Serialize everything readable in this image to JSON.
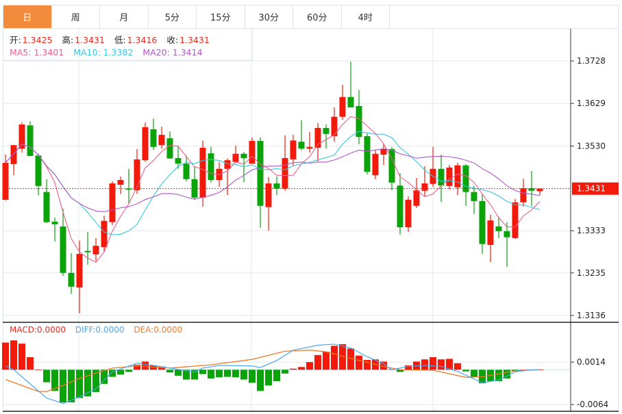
{
  "tabs": [
    {
      "label": "日",
      "active": true
    },
    {
      "label": "周"
    },
    {
      "label": "月"
    },
    {
      "label": "5分"
    },
    {
      "label": "15分"
    },
    {
      "label": "30分"
    },
    {
      "label": "60分"
    },
    {
      "label": "4时"
    }
  ],
  "info": {
    "open_label": "开:",
    "open": "1.3425",
    "high_label": "高:",
    "high": "1.3431",
    "low_label": "低:",
    "low": "1.3416",
    "close_label": "收:",
    "close": "1.3431",
    "ma5": "MA5: 1.3401",
    "ma10": "MA10: 1.3382",
    "ma20": "MA20: 1.3414"
  },
  "macd_info": {
    "macd": "MACD:0.0000",
    "diff": "DIFF:0.0000",
    "dea": "DEA:0.0000"
  },
  "colors": {
    "up": "#f21a0a",
    "down": "#0aa30a",
    "ma5": "#ef5b8a",
    "ma10": "#36c6df",
    "ma20": "#b056c6",
    "diff": "#4aa6f0",
    "dea": "#f07a2a",
    "accent": "#f38b3c"
  },
  "chart_data": [
    {
      "type": "candlestick",
      "price_axis": {
        "ticks": [
          "1.3728",
          "1.3629",
          "1.3530",
          "1.3431",
          "1.3333",
          "1.3235",
          "1.3136"
        ],
        "range": [
          1.3136,
          1.3728
        ]
      },
      "current_price": "1.3431",
      "moving_averages": [
        5,
        10,
        20
      ],
      "grid": true,
      "candles_ohlc": [
        [
          1.3405,
          1.351,
          1.3403,
          1.3491
        ],
        [
          1.3488,
          1.3533,
          1.3462,
          1.3532
        ],
        [
          1.3524,
          1.3585,
          1.3515,
          1.358
        ],
        [
          1.3578,
          1.3588,
          1.3506,
          1.3507
        ],
        [
          1.3508,
          1.3512,
          1.3416,
          1.3437
        ],
        [
          1.3423,
          1.3453,
          1.3351,
          1.3353
        ],
        [
          1.3354,
          1.3364,
          1.3308,
          1.3348
        ],
        [
          1.3343,
          1.3384,
          1.3228,
          1.3235
        ],
        [
          1.3235,
          1.3281,
          1.3186,
          1.3203
        ],
        [
          1.3201,
          1.331,
          1.3141,
          1.3279
        ],
        [
          1.3286,
          1.333,
          1.3254,
          1.3283
        ],
        [
          1.3278,
          1.3316,
          1.3262,
          1.3298
        ],
        [
          1.3295,
          1.3368,
          1.3283,
          1.3356
        ],
        [
          1.3353,
          1.3448,
          1.3346,
          1.3443
        ],
        [
          1.344,
          1.3459,
          1.3418,
          1.3451
        ],
        [
          1.3431,
          1.3477,
          1.3397,
          1.3429
        ],
        [
          1.3427,
          1.3523,
          1.3419,
          1.3499
        ],
        [
          1.3497,
          1.3585,
          1.3493,
          1.3574
        ],
        [
          1.3569,
          1.3594,
          1.3521,
          1.3528
        ],
        [
          1.3532,
          1.3575,
          1.3524,
          1.3556
        ],
        [
          1.3548,
          1.3564,
          1.35,
          1.3501
        ],
        [
          1.3502,
          1.3531,
          1.3477,
          1.3489
        ],
        [
          1.3489,
          1.3508,
          1.3448,
          1.3453
        ],
        [
          1.3453,
          1.3483,
          1.3405,
          1.341
        ],
        [
          1.341,
          1.3543,
          1.3389,
          1.3526
        ],
        [
          1.3513,
          1.3528,
          1.3445,
          1.3451
        ],
        [
          1.3451,
          1.3493,
          1.3435,
          1.3477
        ],
        [
          1.3477,
          1.3501,
          1.3416,
          1.3497
        ],
        [
          1.3493,
          1.3531,
          1.3491,
          1.3512
        ],
        [
          1.3512,
          1.3516,
          1.3446,
          1.3502
        ],
        [
          1.3489,
          1.355,
          1.3489,
          1.3542
        ],
        [
          1.3542,
          1.355,
          1.334,
          1.3391
        ],
        [
          1.3388,
          1.3458,
          1.3333,
          1.3443
        ],
        [
          1.3443,
          1.3459,
          1.3416,
          1.3431
        ],
        [
          1.3431,
          1.3555,
          1.3426,
          1.3502
        ],
        [
          1.3499,
          1.3556,
          1.3483,
          1.3543
        ],
        [
          1.354,
          1.359,
          1.352,
          1.3524
        ],
        [
          1.3524,
          1.3563,
          1.3515,
          1.3528
        ],
        [
          1.3526,
          1.3583,
          1.3494,
          1.3572
        ],
        [
          1.3572,
          1.358,
          1.3524,
          1.3558
        ],
        [
          1.3553,
          1.362,
          1.354,
          1.3598
        ],
        [
          1.3598,
          1.3672,
          1.3591,
          1.3644
        ],
        [
          1.3644,
          1.3726,
          1.362,
          1.362
        ],
        [
          1.3623,
          1.366,
          1.3534,
          1.3551
        ],
        [
          1.3553,
          1.3559,
          1.3464,
          1.347
        ],
        [
          1.3462,
          1.352,
          1.3453,
          1.3512
        ],
        [
          1.351,
          1.3535,
          1.3486,
          1.3524
        ],
        [
          1.3523,
          1.3528,
          1.3427,
          1.3445
        ],
        [
          1.3438,
          1.3467,
          1.3324,
          1.3341
        ],
        [
          1.3341,
          1.3413,
          1.333,
          1.3405
        ],
        [
          1.3391,
          1.3456,
          1.3386,
          1.3427
        ],
        [
          1.3426,
          1.3483,
          1.3413,
          1.3443
        ],
        [
          1.3442,
          1.3528,
          1.3435,
          1.3477
        ],
        [
          1.3477,
          1.351,
          1.34,
          1.3438
        ],
        [
          1.3437,
          1.3486,
          1.3429,
          1.348
        ],
        [
          1.3434,
          1.3491,
          1.3416,
          1.3485
        ],
        [
          1.3485,
          1.3488,
          1.3391,
          1.3423
        ],
        [
          1.3423,
          1.3437,
          1.3372,
          1.3402
        ],
        [
          1.3402,
          1.3418,
          1.3279,
          1.3302
        ],
        [
          1.33,
          1.337,
          1.326,
          1.3357
        ],
        [
          1.3343,
          1.3365,
          1.3316,
          1.3332
        ],
        [
          1.3332,
          1.3353,
          1.3249,
          1.3318
        ],
        [
          1.3316,
          1.3407,
          1.3314,
          1.3399
        ],
        [
          1.3399,
          1.3454,
          1.3389,
          1.3432
        ],
        [
          1.3432,
          1.3472,
          1.3391,
          1.3426
        ],
        [
          1.3425,
          1.3431,
          1.3416,
          1.3431
        ]
      ]
    },
    {
      "type": "bar+line",
      "name": "MACD",
      "axis": {
        "ticks": [
          "0.0014",
          "-0.0064"
        ],
        "range": [
          -0.0068,
          0.006
        ]
      },
      "histogram": [
        0.005,
        0.0054,
        0.0048,
        0.0023,
        0.0,
        -0.0023,
        -0.0039,
        -0.006,
        -0.006,
        -0.0052,
        -0.0049,
        -0.0041,
        -0.0026,
        -0.0013,
        -0.0009,
        -0.0004,
        0.0009,
        0.0015,
        0.0008,
        0.0006,
        -0.0005,
        -0.0011,
        -0.0018,
        -0.0018,
        -0.0008,
        -0.0016,
        -0.0014,
        -0.0013,
        -0.0014,
        -0.0018,
        -0.0024,
        -0.0039,
        -0.0029,
        -0.0021,
        -0.0007,
        0.0002,
        0.0005,
        0.0014,
        0.0027,
        0.0033,
        0.0044,
        0.0047,
        0.0039,
        0.0026,
        0.0018,
        0.0019,
        0.0015,
        0.0001,
        -0.0004,
        0.0008,
        0.0015,
        0.0019,
        0.0023,
        0.0019,
        0.002,
        0.0012,
        -0.0003,
        -0.0013,
        -0.0025,
        -0.0021,
        -0.0021,
        -0.0016,
        -0.0003,
        0.0,
        0.0,
        0.0
      ],
      "diff": [
        [
          0,
          0.0007
        ],
        [
          1,
          0.0
        ],
        [
          5,
          -0.0052
        ],
        [
          7,
          -0.0062
        ],
        [
          9,
          -0.005
        ],
        [
          11,
          -0.0035
        ],
        [
          13,
          -0.0004
        ],
        [
          16,
          0.0012
        ],
        [
          18,
          0.0008
        ],
        [
          20,
          0.0003
        ],
        [
          23,
          -0.0004
        ],
        [
          24,
          0.0003
        ],
        [
          26,
          0.0008
        ],
        [
          30,
          0.0007
        ],
        [
          31,
          0.0004
        ],
        [
          33,
          0.0017
        ],
        [
          35,
          0.0036
        ],
        [
          38,
          0.0045
        ],
        [
          40,
          0.0047
        ],
        [
          42,
          0.004
        ],
        [
          44,
          0.0024
        ],
        [
          46,
          0.0011
        ],
        [
          47,
          0.0
        ],
        [
          49,
          0.0006
        ],
        [
          51,
          0.0008
        ],
        [
          53,
          0.0006
        ],
        [
          55,
          -0.0003
        ],
        [
          58,
          -0.0024
        ],
        [
          60,
          -0.0019
        ],
        [
          62,
          -0.0004
        ],
        [
          64,
          0.0
        ],
        [
          65,
          0.0
        ]
      ],
      "dea": [
        [
          0,
          -0.0018
        ],
        [
          4,
          -0.004
        ],
        [
          5,
          -0.004
        ],
        [
          7,
          -0.0029
        ],
        [
          9,
          -0.0016
        ],
        [
          13,
          0.0003
        ],
        [
          16,
          0.0007
        ],
        [
          20,
          0.0003
        ],
        [
          25,
          0.0009
        ],
        [
          30,
          0.0019
        ],
        [
          34,
          0.0034
        ],
        [
          37,
          0.0036
        ],
        [
          39,
          0.0033
        ],
        [
          42,
          0.0021
        ],
        [
          46,
          0.0006
        ],
        [
          48,
          0.0
        ],
        [
          52,
          -0.0001
        ],
        [
          56,
          -0.0014
        ],
        [
          58,
          -0.0013
        ],
        [
          62,
          -0.0002
        ],
        [
          65,
          0.0
        ]
      ]
    }
  ]
}
